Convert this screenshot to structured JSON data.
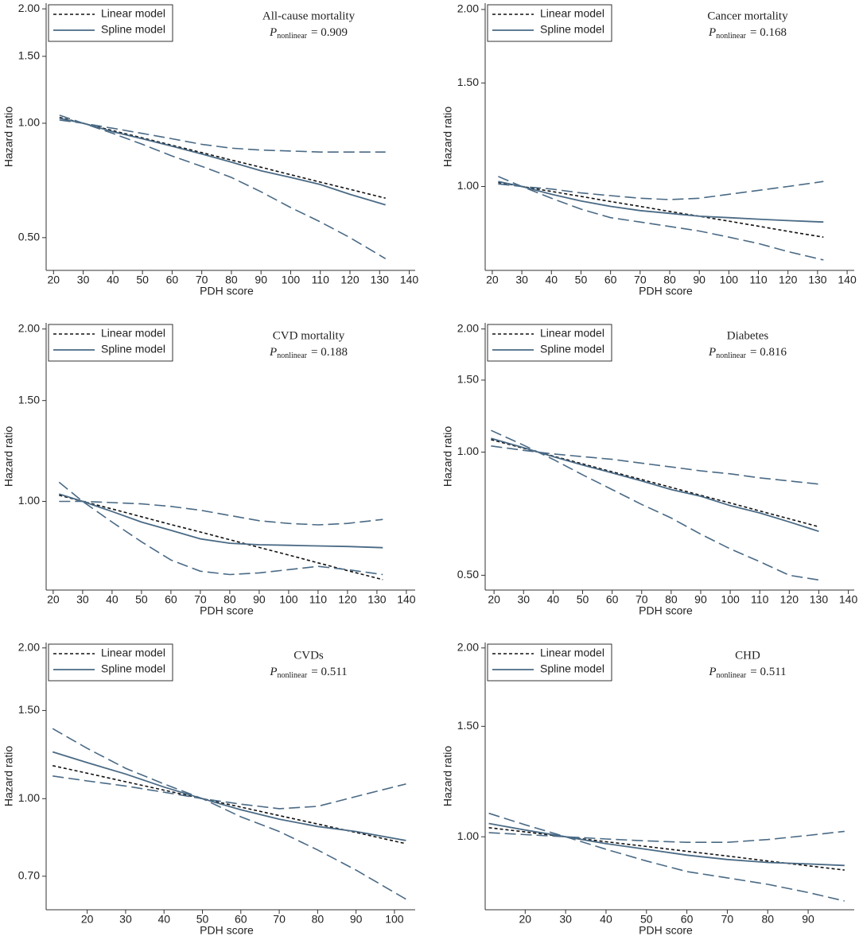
{
  "chart_data": [
    {
      "type": "line",
      "title": "All-cause mortality",
      "annotation": {
        "symbol": "P",
        "subscript": "nonlinear",
        "text": "= 0.909"
      },
      "xlabel": "PDH score",
      "ylabel": "Hazard ratio",
      "ylog": true,
      "grid": false,
      "legend": "upper left",
      "x": [
        22,
        30,
        40,
        50,
        60,
        70,
        80,
        90,
        100,
        110,
        120,
        132
      ],
      "xlim": [
        17.5,
        142
      ],
      "xticks": [
        20,
        30,
        40,
        50,
        60,
        70,
        80,
        90,
        100,
        110,
        120,
        130,
        140
      ],
      "ylim": [
        0.41,
        2.07
      ],
      "yticks": [
        {
          "value": 0.5,
          "label": "0.50"
        },
        {
          "value": 1,
          "label": "1.00"
        },
        {
          "value": 1.5,
          "label": "1.50"
        },
        {
          "value": 2,
          "label": "2.00"
        }
      ],
      "series": [
        {
          "name": "Linear model",
          "color": "#111111",
          "style": "dashed",
          "values": [
            1.036,
            1,
            0.956,
            0.915,
            0.875,
            0.837,
            0.8,
            0.766,
            0.732,
            0.7,
            0.67,
            0.635
          ]
        },
        {
          "name": "Spline model",
          "color": "#4a6a85",
          "style": "solid",
          "values": [
            1.03,
            1,
            0.95,
            0.91,
            0.87,
            0.83,
            0.79,
            0.75,
            0.72,
            0.69,
            0.65,
            0.61
          ]
        },
        {
          "color": "#4a6a85",
          "style": "longdash",
          "values": [
            1.02,
            1,
            0.97,
            0.94,
            0.91,
            0.88,
            0.86,
            0.85,
            0.845,
            0.84,
            0.84,
            0.84
          ]
        },
        {
          "color": "#4a6a85",
          "style": "longdash",
          "values": [
            1.05,
            1,
            0.94,
            0.88,
            0.82,
            0.77,
            0.72,
            0.66,
            0.6,
            0.55,
            0.5,
            0.44
          ]
        }
      ]
    },
    {
      "type": "line",
      "title": "Cancer mortality",
      "annotation": {
        "symbol": "P",
        "subscript": "nonlinear",
        "text": "= 0.168"
      },
      "xlabel": "PDH score",
      "ylabel": "Hazard ratio",
      "ylog": true,
      "grid": false,
      "legend": "upper left",
      "x": [
        22,
        30,
        40,
        50,
        60,
        70,
        80,
        90,
        100,
        110,
        120,
        132
      ],
      "xlim": [
        17.6,
        142.4
      ],
      "xticks": [
        20,
        30,
        40,
        50,
        60,
        70,
        80,
        90,
        100,
        110,
        120,
        130,
        140
      ],
      "ylim": [
        0.72,
        2.05
      ],
      "yticks": [
        {
          "value": 1,
          "label": "1.00"
        },
        {
          "value": 1.5,
          "label": "1.50"
        },
        {
          "value": 2,
          "label": "2.00"
        }
      ],
      "series": [
        {
          "name": "Linear model",
          "color": "#111111",
          "style": "dashed",
          "values": [
            1.016,
            1,
            0.981,
            0.962,
            0.943,
            0.925,
            0.907,
            0.89,
            0.873,
            0.856,
            0.839,
            0.82
          ]
        },
        {
          "name": "Spline model",
          "color": "#4a6a85",
          "style": "solid",
          "values": [
            1.02,
            1,
            0.97,
            0.945,
            0.925,
            0.91,
            0.9,
            0.89,
            0.885,
            0.88,
            0.875,
            0.87
          ]
        },
        {
          "color": "#4a6a85",
          "style": "longdash",
          "values": [
            1.01,
            1,
            0.99,
            0.975,
            0.965,
            0.955,
            0.95,
            0.955,
            0.97,
            0.985,
            1,
            1.02
          ]
        },
        {
          "color": "#4a6a85",
          "style": "longdash",
          "values": [
            1.04,
            1,
            0.955,
            0.915,
            0.885,
            0.87,
            0.855,
            0.84,
            0.82,
            0.8,
            0.775,
            0.75
          ]
        }
      ]
    },
    {
      "type": "line",
      "title": "CVD mortality",
      "annotation": {
        "symbol": "P",
        "subscript": "nonlinear",
        "text": "= 0.188"
      },
      "xlabel": "PDH score",
      "ylabel": "Hazard ratio",
      "ylog": true,
      "grid": false,
      "legend": "upper left",
      "x": [
        22,
        30,
        40,
        50,
        60,
        70,
        80,
        90,
        100,
        110,
        120,
        132
      ],
      "xlim": [
        17.6,
        143
      ],
      "xticks": [
        20,
        30,
        40,
        50,
        60,
        70,
        80,
        90,
        100,
        110,
        120,
        130,
        140
      ],
      "ylim": [
        0.7,
        2.05
      ],
      "yticks": [
        {
          "value": 1,
          "label": "1.00"
        },
        {
          "value": 1.5,
          "label": "1.50"
        },
        {
          "value": 2,
          "label": "2.00"
        }
      ],
      "series": [
        {
          "name": "Linear model",
          "color": "#111111",
          "style": "dashed",
          "values": [
            1.025,
            1,
            0.97,
            0.94,
            0.911,
            0.884,
            0.857,
            0.831,
            0.806,
            0.781,
            0.757,
            0.73
          ]
        },
        {
          "name": "Spline model",
          "color": "#4a6a85",
          "style": "solid",
          "values": [
            1.03,
            1,
            0.96,
            0.92,
            0.89,
            0.86,
            0.845,
            0.84,
            0.838,
            0.836,
            0.834,
            0.83
          ]
        },
        {
          "color": "#4a6a85",
          "style": "longdash",
          "values": [
            1,
            1,
            0.995,
            0.99,
            0.98,
            0.965,
            0.945,
            0.925,
            0.915,
            0.91,
            0.915,
            0.93
          ]
        },
        {
          "color": "#4a6a85",
          "style": "longdash",
          "values": [
            1.08,
            1,
            0.92,
            0.85,
            0.79,
            0.755,
            0.745,
            0.75,
            0.76,
            0.77,
            0.76,
            0.745
          ]
        }
      ]
    },
    {
      "type": "line",
      "title": "Diabetes",
      "annotation": {
        "symbol": "P",
        "subscript": "nonlinear",
        "text": "= 0.816"
      },
      "xlabel": "PDH score",
      "ylabel": "Hazard ratio",
      "ylog": true,
      "grid": false,
      "legend": "upper left",
      "x": [
        19,
        30,
        40,
        50,
        60,
        70,
        80,
        90,
        100,
        110,
        120,
        130
      ],
      "xlim": [
        17,
        142
      ],
      "xticks": [
        20,
        30,
        40,
        50,
        60,
        70,
        80,
        90,
        100,
        110,
        120,
        130,
        140
      ],
      "ylim": [
        0.46,
        2.07
      ],
      "yticks": [
        {
          "value": 0.5,
          "label": "0.50"
        },
        {
          "value": 1,
          "label": "1.00"
        },
        {
          "value": 1.5,
          "label": "1.50"
        },
        {
          "value": 2,
          "label": "2.00"
        }
      ],
      "series": [
        {
          "name": "Linear model",
          "color": "#111111",
          "style": "dashed",
          "values": [
            1.073,
            1.022,
            0.978,
            0.936,
            0.895,
            0.857,
            0.82,
            0.784,
            0.751,
            0.718,
            0.687,
            0.657
          ]
        },
        {
          "name": "Spline model",
          "color": "#4a6a85",
          "style": "solid",
          "values": [
            1.08,
            1.025,
            0.975,
            0.93,
            0.89,
            0.85,
            0.81,
            0.78,
            0.74,
            0.71,
            0.675,
            0.64
          ]
        },
        {
          "color": "#4a6a85",
          "style": "longdash",
          "values": [
            1.035,
            1.01,
            0.99,
            0.975,
            0.96,
            0.94,
            0.92,
            0.9,
            0.885,
            0.865,
            0.85,
            0.835
          ]
        },
        {
          "color": "#4a6a85",
          "style": "longdash",
          "values": [
            1.13,
            1.04,
            0.96,
            0.88,
            0.81,
            0.745,
            0.69,
            0.63,
            0.58,
            0.54,
            0.5,
            0.487
          ]
        }
      ]
    },
    {
      "type": "line",
      "title": "CVDs",
      "annotation": {
        "symbol": "P",
        "subscript": "nonlinear",
        "text": "= 0.511"
      },
      "xlabel": "PDH score",
      "ylabel": "Hazard ratio",
      "ylog": true,
      "grid": false,
      "legend": "upper left",
      "x": [
        11,
        20,
        30,
        40,
        50,
        60,
        70,
        80,
        90,
        103
      ],
      "xlim": [
        9.3,
        105.4
      ],
      "xticks": [
        20,
        30,
        40,
        50,
        60,
        70,
        80,
        90,
        100
      ],
      "ylim": [
        0.6,
        2.05
      ],
      "yticks": [
        {
          "value": 0.7,
          "label": "0.70"
        },
        {
          "value": 1,
          "label": "1.00"
        },
        {
          "value": 1.5,
          "label": "1.50"
        },
        {
          "value": 2,
          "label": "2.00"
        }
      ],
      "series": [
        {
          "name": "Linear model",
          "color": "#111111",
          "style": "dashed",
          "values": [
            1.164,
            1.124,
            1.081,
            1.04,
            1,
            0.962,
            0.925,
            0.89,
            0.856,
            0.813
          ]
        },
        {
          "name": "Spline model",
          "color": "#4a6a85",
          "style": "solid",
          "values": [
            1.24,
            1.18,
            1.12,
            1.055,
            1,
            0.95,
            0.91,
            0.88,
            0.86,
            0.825
          ]
        },
        {
          "color": "#4a6a85",
          "style": "longdash",
          "values": [
            1.11,
            1.085,
            1.06,
            1.03,
            1,
            0.975,
            0.955,
            0.965,
            1.01,
            1.07
          ]
        },
        {
          "color": "#4a6a85",
          "style": "longdash",
          "values": [
            1.38,
            1.26,
            1.15,
            1.07,
            1,
            0.92,
            0.86,
            0.79,
            0.72,
            0.63
          ]
        }
      ]
    },
    {
      "type": "line",
      "title": "CHD",
      "annotation": {
        "symbol": "P",
        "subscript": "nonlinear",
        "text": "= 0.511"
      },
      "xlabel": "PDH score",
      "ylabel": "Hazard ratio",
      "ylog": true,
      "grid": false,
      "legend": "upper left",
      "x": [
        11,
        20,
        30,
        40,
        50,
        60,
        70,
        80,
        90,
        99
      ],
      "xlim": [
        10.1,
        101.4
      ],
      "xticks": [
        20,
        30,
        40,
        50,
        60,
        70,
        80,
        90
      ],
      "ylim": [
        0.765,
        2.04
      ],
      "yticks": [
        {
          "value": 1,
          "label": "1.00"
        },
        {
          "value": 1.5,
          "label": "1.50"
        },
        {
          "value": 2,
          "label": "2.00"
        }
      ],
      "series": [
        {
          "name": "Linear model",
          "color": "#111111",
          "style": "dashed",
          "values": [
            1.034,
            1.018,
            1,
            0.982,
            0.965,
            0.948,
            0.932,
            0.915,
            0.899,
            0.885
          ]
        },
        {
          "name": "Spline model",
          "color": "#4a6a85",
          "style": "solid",
          "values": [
            1.05,
            1.025,
            1,
            0.975,
            0.955,
            0.935,
            0.92,
            0.91,
            0.905,
            0.9
          ]
        },
        {
          "color": "#4a6a85",
          "style": "longdash",
          "values": [
            1.015,
            1.008,
            1,
            0.992,
            0.985,
            0.98,
            0.98,
            0.99,
            1.005,
            1.02
          ]
        },
        {
          "color": "#4a6a85",
          "style": "longdash",
          "values": [
            1.09,
            1.045,
            1,
            0.955,
            0.915,
            0.88,
            0.86,
            0.84,
            0.815,
            0.79
          ]
        }
      ]
    }
  ]
}
